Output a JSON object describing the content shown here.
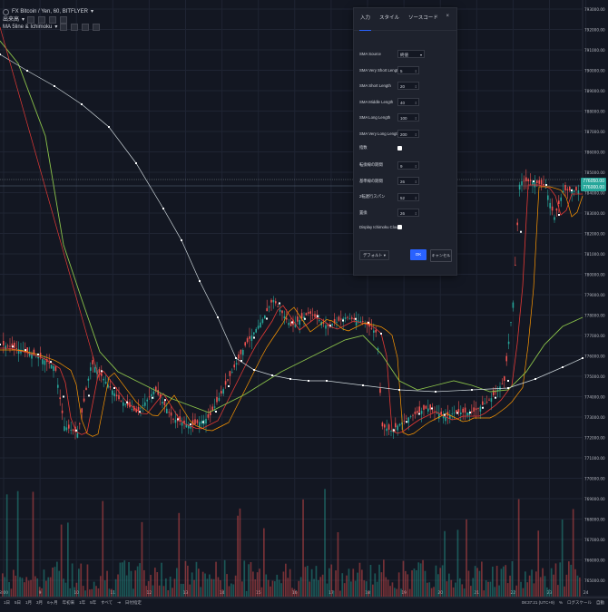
{
  "header": {
    "symbol": "FX Bitcoin / Yen, 60, BITFLYER",
    "volume_label": "出来高",
    "indicator_label": "MA 5line & Ichimoku"
  },
  "axis": {
    "price_ticks": [
      "793000.00",
      "792000.00",
      "791000.00",
      "790000.00",
      "789000.00",
      "788000.00",
      "787000.00",
      "786000.00",
      "785000.00",
      "784000.00",
      "783000.00",
      "782000.00",
      "781000.00",
      "780000.00",
      "779000.00",
      "778000.00",
      "777000.00",
      "776000.00",
      "775000.00",
      "774000.00",
      "773000.00",
      "772000.00",
      "771000.00",
      "770000.00",
      "769000.00",
      "768000.00",
      "767000.00",
      "766000.00",
      "765000.00"
    ],
    "time_ticks": [
      "8:00",
      "9",
      "10",
      "11",
      "12",
      "13",
      "14",
      "15",
      "16",
      "17",
      "18",
      "19",
      "20",
      "21",
      "22",
      "23",
      "24"
    ]
  },
  "price_tags": {
    "last_a": "776050.00",
    "last_b": "776000.00"
  },
  "colors": {
    "background": "#131722",
    "candle_up": "#26a69a",
    "candle_down": "#ef5350",
    "ma_very_short": "#ffffff",
    "ma_short": "#e53935",
    "ma_middle": "#ff9800",
    "ma_long": "#8bc34a",
    "ma_very_long": "#cfd8dc"
  },
  "settings_dialog": {
    "tabs": [
      "入力",
      "スタイル",
      "ソースコード"
    ],
    "active_tab": "入力",
    "close_icon": "×",
    "fields": [
      {
        "label": "SMA Source",
        "kind": "select",
        "value": "終値"
      },
      {
        "label": "SMA Very Short Length",
        "kind": "number",
        "value": "5"
      },
      {
        "label": "SMA Short Length",
        "kind": "number",
        "value": "20"
      },
      {
        "label": "SMA Middle Length",
        "kind": "number",
        "value": "40"
      },
      {
        "label": "SMA Long Length",
        "kind": "number",
        "value": "100"
      },
      {
        "label": "SMA Very Long Length",
        "kind": "number",
        "value": "200"
      },
      {
        "label": "指数",
        "kind": "checkbox",
        "value": ""
      },
      {
        "label": "転換線の期間",
        "kind": "number",
        "value": "9"
      },
      {
        "label": "基準線の期間",
        "kind": "number",
        "value": "26"
      },
      {
        "label": "2転遅行スパン",
        "kind": "number",
        "value": "52"
      },
      {
        "label": "置換",
        "kind": "number",
        "value": "26"
      },
      {
        "label": "Display Ichimoku Cloud",
        "kind": "checkbox",
        "value": ""
      }
    ],
    "default_button": "デフォルト",
    "ok_button": "OK",
    "cancel_button": "キャンセル"
  },
  "bottom_bar": {
    "ranges": [
      "1日",
      "5日",
      "1月",
      "3月",
      "6ヶ月",
      "年初来",
      "1年",
      "5年",
      "すべて"
    ],
    "goto_label": "日付指定",
    "clock": "08:37:21 (UTC+9)",
    "pct": "%",
    "log": "ログスケール",
    "auto": "自動"
  }
}
